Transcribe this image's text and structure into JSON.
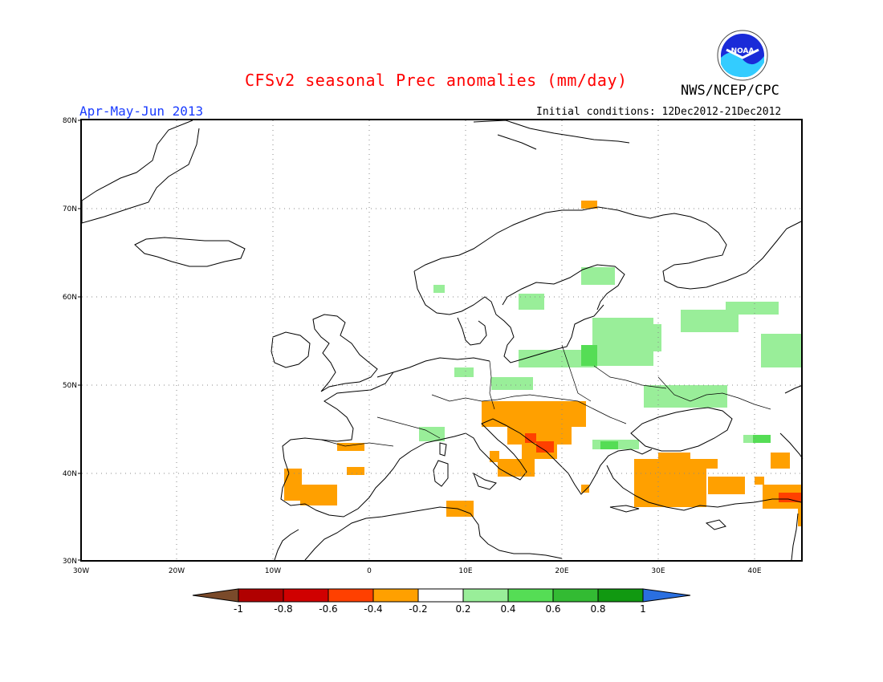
{
  "header": {
    "title": "CFSv2 seasonal Prec anomalies (mm/day)",
    "organization": "NWS/NCEP/CPC",
    "logo_text": "NOAA",
    "period": "Apr-May-Jun 2013",
    "initial_conditions": "Initial conditions: 12Dec2012-21Dec2012"
  },
  "map": {
    "lat_range": [
      30,
      80
    ],
    "lon_range": [
      -30,
      45
    ],
    "lat_labels": [
      "80N",
      "70N",
      "60N",
      "50N",
      "40N",
      "30N"
    ],
    "lon_labels": [
      "30W",
      "20W",
      "10W",
      "0",
      "10E",
      "20E",
      "30E",
      "40E"
    ],
    "gridlines": "dotted"
  },
  "colorbar": {
    "labels": [
      "-1",
      "-0.8",
      "-0.6",
      "-0.4",
      "-0.2",
      "0.2",
      "0.4",
      "0.6",
      "0.8",
      "1"
    ],
    "colors": [
      "#7a4a2a",
      "#b00000",
      "#d00000",
      "#ff4000",
      "#ffa000",
      "#ffffff",
      "#99ee99",
      "#55dd55",
      "#33bb33",
      "#119911",
      "#2a6fe0"
    ]
  },
  "colors": {
    "dry_light": "#ffa000",
    "dry_strong": "#ff4000",
    "wet_light": "#99ee99",
    "wet_medium": "#55dd55"
  }
}
